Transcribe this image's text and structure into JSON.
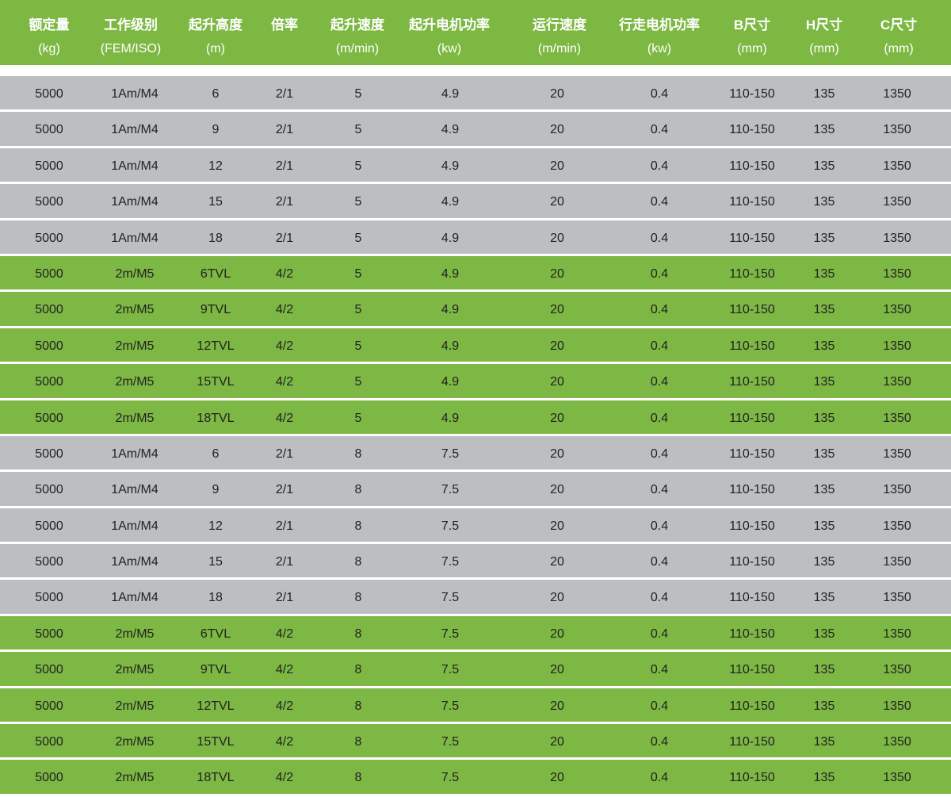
{
  "colors": {
    "header": "#7db843",
    "grey_row": "#bdbec2",
    "green_row": "#7db744"
  },
  "header": [
    {
      "title": "额定量",
      "unit": "(kg)"
    },
    {
      "title": "工作级别",
      "unit": "(FEM/ISO)"
    },
    {
      "title": "起升高度",
      "unit": "(m)"
    },
    {
      "title": "倍率",
      "unit": ""
    },
    {
      "title": "起升速度",
      "unit": "(m/min)"
    },
    {
      "title": "起升电机功率",
      "unit": "(kw)"
    },
    {
      "title": "运行速度",
      "unit": "(m/min)"
    },
    {
      "title": "行走电机功率",
      "unit": "(kw)"
    },
    {
      "title": "B尺寸",
      "unit": "(mm)"
    },
    {
      "title": "H尺寸",
      "unit": "(mm)"
    },
    {
      "title": "C尺寸",
      "unit": "(mm)"
    }
  ],
  "rows": [
    {
      "style": "grey",
      "cells": [
        "5000",
        "1Am/M4",
        "6",
        "2/1",
        "5",
        "4.9",
        "20",
        "0.4",
        "110-150",
        "135",
        "1350"
      ]
    },
    {
      "style": "grey",
      "cells": [
        "5000",
        "1Am/M4",
        "9",
        "2/1",
        "5",
        "4.9",
        "20",
        "0.4",
        "110-150",
        "135",
        "1350"
      ]
    },
    {
      "style": "grey",
      "cells": [
        "5000",
        "1Am/M4",
        "12",
        "2/1",
        "5",
        "4.9",
        "20",
        "0.4",
        "110-150",
        "135",
        "1350"
      ]
    },
    {
      "style": "grey",
      "cells": [
        "5000",
        "1Am/M4",
        "15",
        "2/1",
        "5",
        "4.9",
        "20",
        "0.4",
        "110-150",
        "135",
        "1350"
      ]
    },
    {
      "style": "grey",
      "cells": [
        "5000",
        "1Am/M4",
        "18",
        "2/1",
        "5",
        "4.9",
        "20",
        "0.4",
        "110-150",
        "135",
        "1350"
      ]
    },
    {
      "style": "green",
      "cells": [
        "5000",
        "2m/M5",
        "6TVL",
        "4/2",
        "5",
        "4.9",
        "20",
        "0.4",
        "110-150",
        "135",
        "1350"
      ]
    },
    {
      "style": "green",
      "cells": [
        "5000",
        "2m/M5",
        "9TVL",
        "4/2",
        "5",
        "4.9",
        "20",
        "0.4",
        "110-150",
        "135",
        "1350"
      ]
    },
    {
      "style": "green",
      "cells": [
        "5000",
        "2m/M5",
        "12TVL",
        "4/2",
        "5",
        "4.9",
        "20",
        "0.4",
        "110-150",
        "135",
        "1350"
      ]
    },
    {
      "style": "green",
      "cells": [
        "5000",
        "2m/M5",
        "15TVL",
        "4/2",
        "5",
        "4.9",
        "20",
        "0.4",
        "110-150",
        "135",
        "1350"
      ]
    },
    {
      "style": "green",
      "cells": [
        "5000",
        "2m/M5",
        "18TVL",
        "4/2",
        "5",
        "4.9",
        "20",
        "0.4",
        "110-150",
        "135",
        "1350"
      ]
    },
    {
      "style": "grey",
      "cells": [
        "5000",
        "1Am/M4",
        "6",
        "2/1",
        "8",
        "7.5",
        "20",
        "0.4",
        "110-150",
        "135",
        "1350"
      ]
    },
    {
      "style": "grey",
      "cells": [
        "5000",
        "1Am/M4",
        "9",
        "2/1",
        "8",
        "7.5",
        "20",
        "0.4",
        "110-150",
        "135",
        "1350"
      ]
    },
    {
      "style": "grey",
      "cells": [
        "5000",
        "1Am/M4",
        "12",
        "2/1",
        "8",
        "7.5",
        "20",
        "0.4",
        "110-150",
        "135",
        "1350"
      ]
    },
    {
      "style": "grey",
      "cells": [
        "5000",
        "1Am/M4",
        "15",
        "2/1",
        "8",
        "7.5",
        "20",
        "0.4",
        "110-150",
        "135",
        "1350"
      ]
    },
    {
      "style": "grey",
      "cells": [
        "5000",
        "1Am/M4",
        "18",
        "2/1",
        "8",
        "7.5",
        "20",
        "0.4",
        "110-150",
        "135",
        "1350"
      ]
    },
    {
      "style": "green",
      "cells": [
        "5000",
        "2m/M5",
        "6TVL",
        "4/2",
        "8",
        "7.5",
        "20",
        "0.4",
        "110-150",
        "135",
        "1350"
      ]
    },
    {
      "style": "green",
      "cells": [
        "5000",
        "2m/M5",
        "9TVL",
        "4/2",
        "8",
        "7.5",
        "20",
        "0.4",
        "110-150",
        "135",
        "1350"
      ]
    },
    {
      "style": "green",
      "cells": [
        "5000",
        "2m/M5",
        "12TVL",
        "4/2",
        "8",
        "7.5",
        "20",
        "0.4",
        "110-150",
        "135",
        "1350"
      ]
    },
    {
      "style": "green",
      "cells": [
        "5000",
        "2m/M5",
        "15TVL",
        "4/2",
        "8",
        "7.5",
        "20",
        "0.4",
        "110-150",
        "135",
        "1350"
      ]
    },
    {
      "style": "green",
      "cells": [
        "5000",
        "2m/M5",
        "18TVL",
        "4/2",
        "8",
        "7.5",
        "20",
        "0.4",
        "110-150",
        "135",
        "1350"
      ]
    }
  ]
}
